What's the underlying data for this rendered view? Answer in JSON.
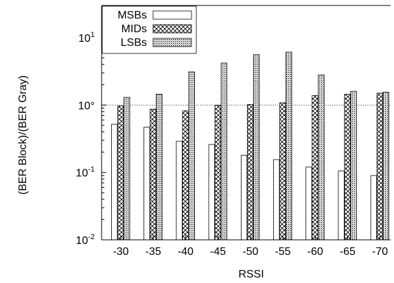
{
  "chart_data": {
    "type": "bar",
    "xlabel": "RSSI",
    "ylabel": "(BER Block)/(BER Gray)",
    "yscale": "log",
    "ylim": [
      0.01,
      30
    ],
    "y_ticks": [
      {
        "value": 0.01,
        "base": "10",
        "exp": "-2"
      },
      {
        "value": 0.1,
        "base": "10",
        "exp": "-1"
      },
      {
        "value": 1,
        "label": "10°"
      },
      {
        "value": 10,
        "base": "10",
        "exp": "1"
      }
    ],
    "reference_line": 1,
    "categories": [
      "-30",
      "-35",
      "-40",
      "-45",
      "-50",
      "-55",
      "-60",
      "-65",
      "-70"
    ],
    "series": [
      {
        "name": "MSBs",
        "pattern": "empty",
        "values": [
          0.52,
          0.47,
          0.29,
          0.26,
          0.18,
          0.155,
          0.12,
          0.105,
          0.09
        ]
      },
      {
        "name": "MIDs",
        "pattern": "cross-hatch",
        "values": [
          0.97,
          0.87,
          0.82,
          0.99,
          1.02,
          1.08,
          1.38,
          1.45,
          1.5
        ]
      },
      {
        "name": "LSBs",
        "pattern": "dots",
        "values": [
          1.3,
          1.45,
          3.1,
          4.2,
          5.6,
          6.1,
          2.8,
          1.6,
          1.55
        ]
      }
    ],
    "legend": {
      "position": "top-left"
    },
    "grid": false
  }
}
